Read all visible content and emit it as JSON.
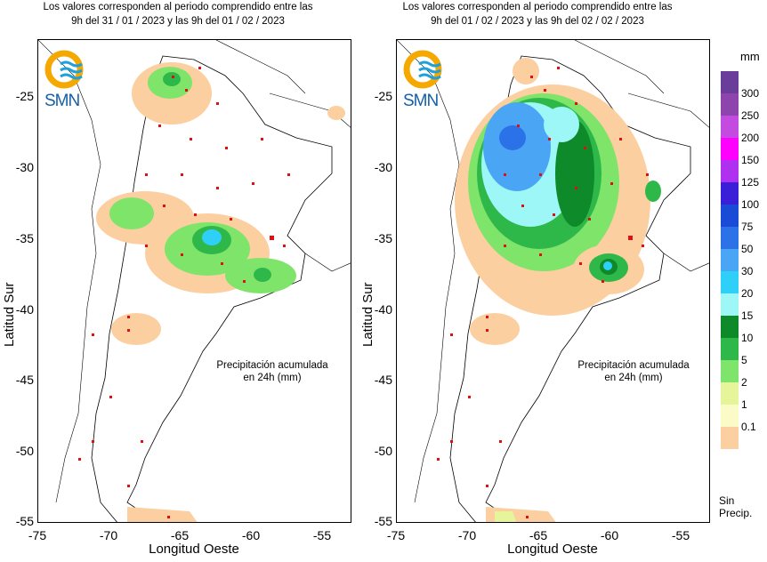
{
  "panels": [
    {
      "id": "left",
      "header_line1": "Los valores corresponden al periodo comprendido entre las",
      "header_line2": "9h del 31 / 01 / 2023  y las 9h del 01 / 02 / 2023",
      "logo_text": "SMN",
      "note_line1": "Precipitación acumulada",
      "note_line2": "en 24h (mm)"
    },
    {
      "id": "right",
      "header_line1": "Los valores corresponden al periodo comprendido entre las",
      "header_line2": "9h del 01 / 02 / 2023  y las 9h del 02 / 02 / 2023",
      "logo_text": "SMN",
      "note_line1": "Precipitación acumulada",
      "note_line2": "en 24h (mm)"
    }
  ],
  "axes": {
    "xlabel": "Longitud Oeste",
    "ylabel": "Latitud Sur",
    "xticks": [
      "-75",
      "-70",
      "-65",
      "-60",
      "-55"
    ],
    "yticks": [
      "-25",
      "-30",
      "-35",
      "-40",
      "-45",
      "-50",
      "-55"
    ],
    "xlim": [
      -75,
      -53
    ],
    "ylim": [
      -55,
      -21
    ]
  },
  "legend": {
    "unit": "mm",
    "no_precip_label_1": "Sin",
    "no_precip_label_2": "Precip.",
    "bins": [
      {
        "label": "300",
        "color": "#6a3d9a"
      },
      {
        "label": "250",
        "color": "#8e44ad"
      },
      {
        "label": "200",
        "color": "#c44be0"
      },
      {
        "label": "150",
        "color": "#ff00ff"
      },
      {
        "label": "125",
        "color": "#b030f0"
      },
      {
        "label": "100",
        "color": "#3b1fd8"
      },
      {
        "label": "75",
        "color": "#1a4bd6"
      },
      {
        "label": "50",
        "color": "#2b72e8"
      },
      {
        "label": "30",
        "color": "#4aa6f5"
      },
      {
        "label": "20",
        "color": "#2fd0f7"
      },
      {
        "label": "15",
        "color": "#9df7f7"
      },
      {
        "label": "10",
        "color": "#0f8a2a"
      },
      {
        "label": "5",
        "color": "#2fb84a"
      },
      {
        "label": "2",
        "color": "#7fe46a"
      },
      {
        "label": "1",
        "color": "#e6f59a"
      },
      {
        "label": "0.1",
        "color": "#fbfbc8"
      },
      {
        "label": "",
        "color": "#fbcfa0"
      }
    ]
  }
}
